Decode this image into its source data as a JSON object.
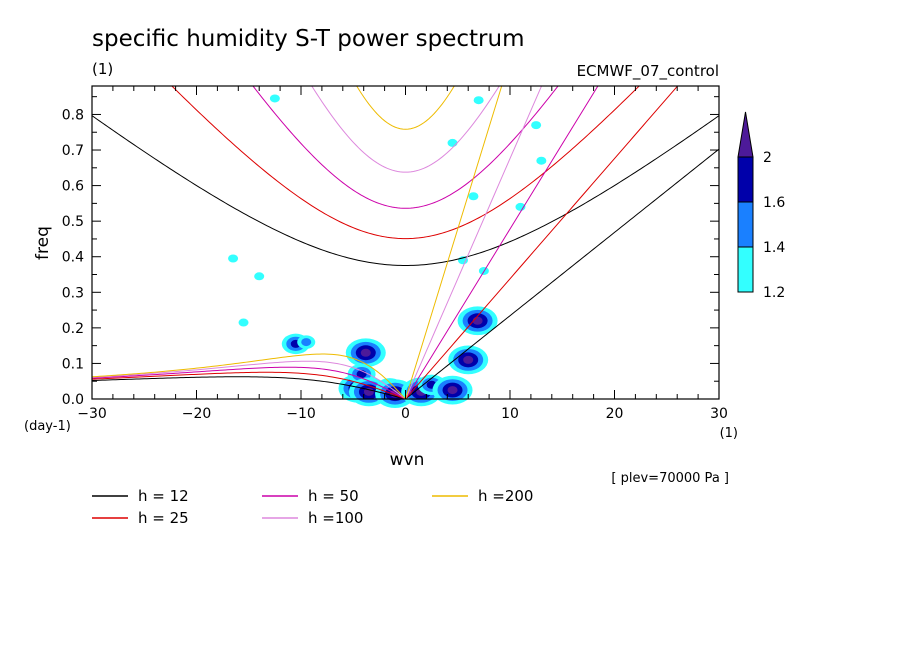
{
  "chart_data": {
    "type": "contour",
    "title": "specific humidity S-T power spectrum",
    "units": "(1)",
    "dataset": "ECMWF_07_control",
    "xlabel": "wvn",
    "x_units": "(1)",
    "ylabel": "freq",
    "y_units": "(day-1)",
    "xlim": [
      -30,
      30
    ],
    "ylim": [
      0,
      0.88
    ],
    "x_ticks": [
      -30,
      -20,
      -10,
      0,
      10,
      20,
      30
    ],
    "x_tick_labels": [
      "−30",
      "−20",
      "−10",
      "0",
      "10",
      "20",
      "30"
    ],
    "y_ticks": [
      0.0,
      0.1,
      0.2,
      0.3,
      0.4,
      0.5,
      0.6,
      0.7,
      0.8
    ],
    "y_tick_labels": [
      "0.0",
      "0.1",
      "0.2",
      "0.3",
      "0.4",
      "0.5",
      "0.6",
      "0.7",
      "0.8"
    ],
    "level_note": "[ plev=70000 Pa ]",
    "colorbar": {
      "levels": [
        "1.2",
        "1.4",
        "1.6",
        "2"
      ],
      "colors": [
        "#33ffff",
        "#1a80ff",
        "#0000aa",
        "#4d1a99"
      ]
    },
    "dispersion_curves": [
      {
        "name": "h = 12",
        "color": "#000000"
      },
      {
        "name": "h = 25",
        "color": "#dd0000"
      },
      {
        "name": "h = 50",
        "color": "#cc00aa"
      },
      {
        "name": "h =100",
        "color": "#dd88dd"
      },
      {
        "name": "h =200",
        "color": "#eebb00"
      }
    ],
    "power_blobs": [
      {
        "x": -4.5,
        "y": 0.03,
        "level": 3
      },
      {
        "x": -4.2,
        "y": 0.07,
        "level": 2
      },
      {
        "x": -3.5,
        "y": 0.02,
        "level": 3
      },
      {
        "x": -3.8,
        "y": 0.13,
        "level": 3
      },
      {
        "x": -1.5,
        "y": 0.03,
        "level": 2
      },
      {
        "x": -1.0,
        "y": 0.015,
        "level": 3
      },
      {
        "x": 1.5,
        "y": 0.02,
        "level": 3
      },
      {
        "x": 2.5,
        "y": 0.04,
        "level": 2
      },
      {
        "x": 4.5,
        "y": 0.025,
        "level": 3
      },
      {
        "x": 6.0,
        "y": 0.11,
        "level": 3
      },
      {
        "x": 6.9,
        "y": 0.22,
        "level": 3
      },
      {
        "x": -10.5,
        "y": 0.155,
        "level": 2
      },
      {
        "x": -9.5,
        "y": 0.16,
        "level": 1
      },
      {
        "x": -14.0,
        "y": 0.345,
        "level": 0
      },
      {
        "x": -16.5,
        "y": 0.395,
        "level": 0
      },
      {
        "x": 6.5,
        "y": 0.57,
        "level": 0
      },
      {
        "x": 11.0,
        "y": 0.54,
        "level": 0
      },
      {
        "x": 4.5,
        "y": 0.72,
        "level": 0
      },
      {
        "x": 7.0,
        "y": 0.84,
        "level": 0
      },
      {
        "x": 13.0,
        "y": 0.67,
        "level": 0
      },
      {
        "x": -12.5,
        "y": 0.845,
        "level": 0
      },
      {
        "x": 7.5,
        "y": 0.36,
        "level": 0
      },
      {
        "x": 5.5,
        "y": 0.39,
        "level": 0
      },
      {
        "x": 12.5,
        "y": 0.77,
        "level": 0
      },
      {
        "x": -15.5,
        "y": 0.215,
        "level": 0
      }
    ]
  },
  "legend": {
    "items": [
      {
        "label": "h = 12",
        "color": "#000000"
      },
      {
        "label": "h = 50",
        "color": "#cc00aa"
      },
      {
        "label": "h =200",
        "color": "#eebb00"
      },
      {
        "label": "h = 25",
        "color": "#dd0000"
      },
      {
        "label": "h =100",
        "color": "#dd88dd"
      }
    ]
  }
}
